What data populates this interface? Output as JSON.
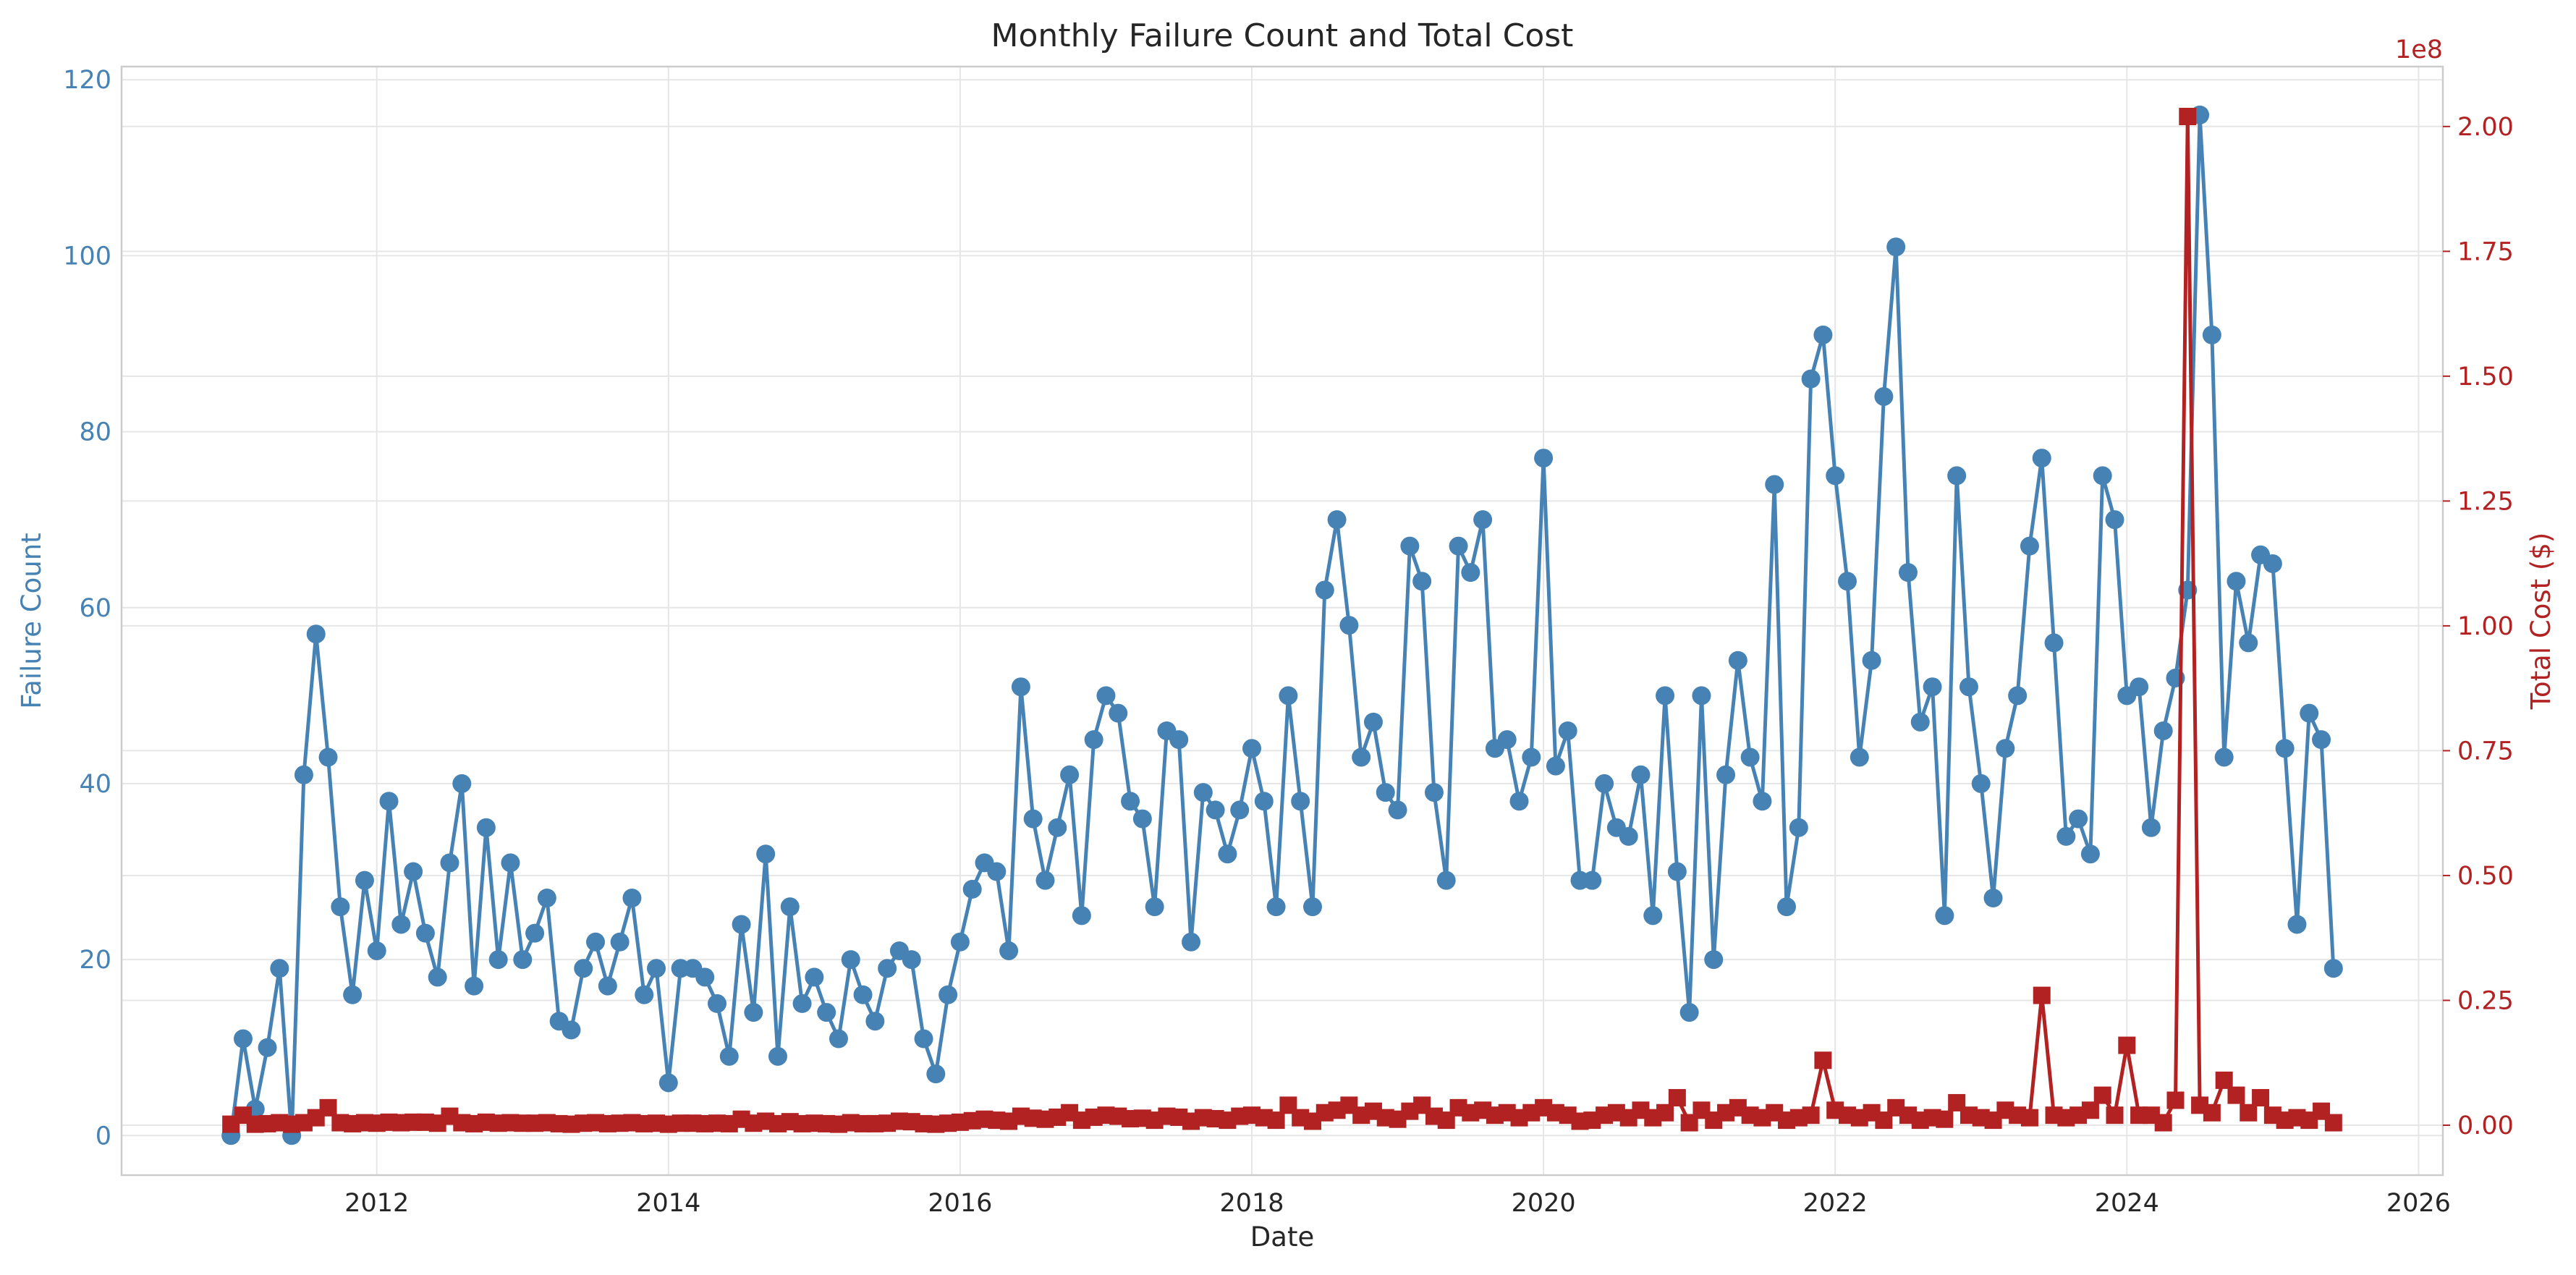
{
  "chart_data": {
    "type": "line",
    "title": "Monthly Failure Count and Total Cost",
    "xlabel": "Date",
    "x_tick_labels": [
      "2012",
      "2014",
      "2016",
      "2018",
      "2020",
      "2022",
      "2024",
      "2026"
    ],
    "xlim": [
      "2010-04-01",
      "2026-03-01"
    ],
    "grid": true,
    "colors": {
      "failure": "#4682b4",
      "cost": "#b22222"
    },
    "left_axis": {
      "label": "Failure Count",
      "ylim": [
        -4.5,
        121.5
      ],
      "ticks": [
        0,
        20,
        40,
        60,
        80,
        100,
        120
      ],
      "tick_labels": [
        "0",
        "20",
        "40",
        "60",
        "80",
        "100",
        "120"
      ]
    },
    "right_axis": {
      "label": "Total Cost ($)",
      "offset_text": "1e8",
      "ylim": [
        -0.1,
        2.12
      ],
      "ticks": [
        0,
        0.25,
        0.5,
        0.75,
        1.0,
        1.25,
        1.5,
        1.75,
        2.0
      ],
      "tick_labels": [
        "0.00",
        "0.25",
        "0.50",
        "0.75",
        "1.00",
        "1.25",
        "1.50",
        "1.75",
        "2.00"
      ]
    },
    "series": [
      {
        "axis": "left",
        "marker": "circle",
        "color": "#4682b4",
        "x": [
          "2011-01",
          "2011-02",
          "2011-03",
          "2011-04",
          "2011-05",
          "2011-06",
          "2011-07",
          "2011-08",
          "2011-09",
          "2011-10",
          "2011-11",
          "2011-12",
          "2012-01",
          "2012-02",
          "2012-03",
          "2012-04",
          "2012-05",
          "2012-06",
          "2012-07",
          "2012-08",
          "2012-09",
          "2012-10",
          "2012-11",
          "2012-12",
          "2013-01",
          "2013-02",
          "2013-03",
          "2013-04",
          "2013-05",
          "2013-06",
          "2013-07",
          "2013-08",
          "2013-09",
          "2013-10",
          "2013-11",
          "2013-12",
          "2014-01",
          "2014-02",
          "2014-03",
          "2014-04",
          "2014-05",
          "2014-06",
          "2014-07",
          "2014-08",
          "2014-09",
          "2014-10",
          "2014-11",
          "2014-12",
          "2015-01",
          "2015-02",
          "2015-03",
          "2015-04",
          "2015-05",
          "2015-06",
          "2015-07",
          "2015-08",
          "2015-09",
          "2015-10",
          "2015-11",
          "2015-12",
          "2016-01",
          "2016-02",
          "2016-03",
          "2016-04",
          "2016-05",
          "2016-06",
          "2016-07",
          "2016-08",
          "2016-09",
          "2016-10",
          "2016-11",
          "2016-12",
          "2017-01",
          "2017-02",
          "2017-03",
          "2017-04",
          "2017-05",
          "2017-06",
          "2017-07",
          "2017-08",
          "2017-09",
          "2017-10",
          "2017-11",
          "2017-12",
          "2018-01",
          "2018-02",
          "2018-03",
          "2018-04",
          "2018-05",
          "2018-06",
          "2018-07",
          "2018-08",
          "2018-09",
          "2018-10",
          "2018-11",
          "2018-12",
          "2019-01",
          "2019-02",
          "2019-03",
          "2019-04",
          "2019-05",
          "2019-06",
          "2019-07",
          "2019-08",
          "2019-09",
          "2019-10",
          "2019-11",
          "2019-12",
          "2020-01",
          "2020-02",
          "2020-03",
          "2020-04",
          "2020-05",
          "2020-06",
          "2020-07",
          "2020-08",
          "2020-09",
          "2020-10",
          "2020-11",
          "2020-12",
          "2021-01",
          "2021-02",
          "2021-03",
          "2021-04",
          "2021-05",
          "2021-06",
          "2021-07",
          "2021-08",
          "2021-09",
          "2021-10",
          "2021-11",
          "2021-12",
          "2022-01",
          "2022-02",
          "2022-03",
          "2022-04",
          "2022-05",
          "2022-06",
          "2022-07",
          "2022-08",
          "2022-09",
          "2022-10",
          "2022-11",
          "2022-12",
          "2023-01",
          "2023-02",
          "2023-03",
          "2023-04",
          "2023-05",
          "2023-06",
          "2023-07",
          "2023-08",
          "2023-09",
          "2023-10",
          "2023-11",
          "2023-12",
          "2024-01",
          "2024-02",
          "2024-03",
          "2024-04",
          "2024-05",
          "2024-06",
          "2024-07",
          "2024-08",
          "2024-09",
          "2024-10",
          "2024-11",
          "2024-12",
          "2025-01",
          "2025-02",
          "2025-03",
          "2025-04",
          "2025-05",
          "2025-06"
        ],
        "y": [
          0,
          11,
          3,
          10,
          19,
          0,
          41,
          57,
          43,
          26,
          16,
          29,
          21,
          38,
          24,
          30,
          23,
          18,
          31,
          40,
          17,
          35,
          20,
          31,
          20,
          23,
          27,
          13,
          12,
          19,
          22,
          17,
          22,
          27,
          16,
          19,
          6,
          19,
          19,
          18,
          15,
          9,
          24,
          14,
          32,
          9,
          26,
          15,
          18,
          14,
          11,
          20,
          16,
          13,
          19,
          21,
          20,
          11,
          7,
          16,
          22,
          28,
          31,
          30,
          21,
          51,
          36,
          29,
          35,
          41,
          25,
          45,
          50,
          48,
          38,
          36,
          26,
          46,
          45,
          22,
          39,
          37,
          32,
          37,
          44,
          38,
          26,
          50,
          38,
          26,
          62,
          70,
          58,
          43,
          47,
          39,
          37,
          67,
          63,
          39,
          29,
          67,
          64,
          70,
          44,
          45,
          38,
          43,
          77,
          42,
          46,
          29,
          29,
          40,
          35,
          34,
          41,
          25,
          50,
          30,
          14,
          50,
          20,
          41,
          54,
          43,
          38,
          74,
          26,
          35,
          86,
          91,
          75,
          63,
          43,
          54,
          84,
          101,
          64,
          47,
          51,
          25,
          75,
          51,
          40,
          27,
          44,
          50,
          67,
          77,
          56,
          34,
          36,
          32,
          75,
          70,
          50,
          51,
          35,
          46,
          52,
          62,
          116,
          91,
          43,
          63,
          56,
          66,
          65,
          44,
          24,
          48,
          45,
          19
        ]
      },
      {
        "axis": "right",
        "marker": "square",
        "color": "#b22222",
        "x": [
          "2011-01",
          "2011-02",
          "2011-03",
          "2011-04",
          "2011-05",
          "2011-06",
          "2011-07",
          "2011-08",
          "2011-09",
          "2011-10",
          "2011-11",
          "2011-12",
          "2012-01",
          "2012-02",
          "2012-03",
          "2012-04",
          "2012-05",
          "2012-06",
          "2012-07",
          "2012-08",
          "2012-09",
          "2012-10",
          "2012-11",
          "2012-12",
          "2013-01",
          "2013-02",
          "2013-03",
          "2013-04",
          "2013-05",
          "2013-06",
          "2013-07",
          "2013-08",
          "2013-09",
          "2013-10",
          "2013-11",
          "2013-12",
          "2014-01",
          "2014-02",
          "2014-03",
          "2014-04",
          "2014-05",
          "2014-06",
          "2014-07",
          "2014-08",
          "2014-09",
          "2014-10",
          "2014-11",
          "2014-12",
          "2015-01",
          "2015-02",
          "2015-03",
          "2015-04",
          "2015-05",
          "2015-06",
          "2015-07",
          "2015-08",
          "2015-09",
          "2015-10",
          "2015-11",
          "2015-12",
          "2016-01",
          "2016-02",
          "2016-03",
          "2016-04",
          "2016-05",
          "2016-06",
          "2016-07",
          "2016-08",
          "2016-09",
          "2016-10",
          "2016-11",
          "2016-12",
          "2017-01",
          "2017-02",
          "2017-03",
          "2017-04",
          "2017-05",
          "2017-06",
          "2017-07",
          "2017-08",
          "2017-09",
          "2017-10",
          "2017-11",
          "2017-12",
          "2018-01",
          "2018-02",
          "2018-03",
          "2018-04",
          "2018-05",
          "2018-06",
          "2018-07",
          "2018-08",
          "2018-09",
          "2018-10",
          "2018-11",
          "2018-12",
          "2019-01",
          "2019-02",
          "2019-03",
          "2019-04",
          "2019-05",
          "2019-06",
          "2019-07",
          "2019-08",
          "2019-09",
          "2019-10",
          "2019-11",
          "2019-12",
          "2020-01",
          "2020-02",
          "2020-03",
          "2020-04",
          "2020-05",
          "2020-06",
          "2020-07",
          "2020-08",
          "2020-09",
          "2020-10",
          "2020-11",
          "2020-12",
          "2021-01",
          "2021-02",
          "2021-03",
          "2021-04",
          "2021-05",
          "2021-06",
          "2021-07",
          "2021-08",
          "2021-09",
          "2021-10",
          "2021-11",
          "2021-12",
          "2022-01",
          "2022-02",
          "2022-03",
          "2022-04",
          "2022-05",
          "2022-06",
          "2022-07",
          "2022-08",
          "2022-09",
          "2022-10",
          "2022-11",
          "2022-12",
          "2023-01",
          "2023-02",
          "2023-03",
          "2023-04",
          "2023-05",
          "2023-06",
          "2023-07",
          "2023-08",
          "2023-09",
          "2023-10",
          "2023-11",
          "2023-12",
          "2024-01",
          "2024-02",
          "2024-03",
          "2024-04",
          "2024-05",
          "2024-06",
          "2024-07",
          "2024-08",
          "2024-09",
          "2024-10",
          "2024-11",
          "2024-12",
          "2025-01",
          "2025-02",
          "2025-03",
          "2025-04",
          "2025-05",
          "2025-06"
        ],
        "y": [
          0.002,
          0.02,
          0.002,
          0.003,
          0.005,
          0.002,
          0.005,
          0.015,
          0.035,
          0.005,
          0.003,
          0.005,
          0.004,
          0.006,
          0.005,
          0.006,
          0.006,
          0.004,
          0.018,
          0.005,
          0.003,
          0.006,
          0.004,
          0.005,
          0.004,
          0.004,
          0.005,
          0.003,
          0.002,
          0.004,
          0.005,
          0.003,
          0.004,
          0.005,
          0.003,
          0.004,
          0.002,
          0.004,
          0.004,
          0.003,
          0.004,
          0.003,
          0.012,
          0.004,
          0.008,
          0.003,
          0.007,
          0.003,
          0.004,
          0.003,
          0.002,
          0.005,
          0.003,
          0.003,
          0.004,
          0.008,
          0.007,
          0.003,
          0.002,
          0.004,
          0.006,
          0.009,
          0.012,
          0.01,
          0.008,
          0.018,
          0.014,
          0.012,
          0.016,
          0.025,
          0.01,
          0.016,
          0.02,
          0.018,
          0.013,
          0.014,
          0.01,
          0.018,
          0.016,
          0.008,
          0.015,
          0.013,
          0.01,
          0.018,
          0.02,
          0.015,
          0.01,
          0.04,
          0.015,
          0.008,
          0.025,
          0.03,
          0.04,
          0.02,
          0.028,
          0.015,
          0.012,
          0.028,
          0.04,
          0.018,
          0.01,
          0.035,
          0.025,
          0.03,
          0.02,
          0.025,
          0.015,
          0.025,
          0.035,
          0.025,
          0.02,
          0.008,
          0.01,
          0.02,
          0.025,
          0.015,
          0.03,
          0.015,
          0.025,
          0.055,
          0.005,
          0.03,
          0.01,
          0.025,
          0.035,
          0.02,
          0.015,
          0.025,
          0.01,
          0.015,
          0.02,
          0.13,
          0.03,
          0.02,
          0.015,
          0.025,
          0.01,
          0.035,
          0.02,
          0.01,
          0.015,
          0.012,
          0.045,
          0.02,
          0.015,
          0.01,
          0.03,
          0.02,
          0.015,
          0.26,
          0.02,
          0.015,
          0.02,
          0.03,
          0.06,
          0.02,
          0.16,
          0.02,
          0.02,
          0.005,
          0.05,
          2.02,
          0.04,
          0.025,
          0.09,
          0.06,
          0.025,
          0.055,
          0.02,
          0.01,
          0.015,
          0.01,
          0.028,
          0.005
        ]
      }
    ]
  }
}
